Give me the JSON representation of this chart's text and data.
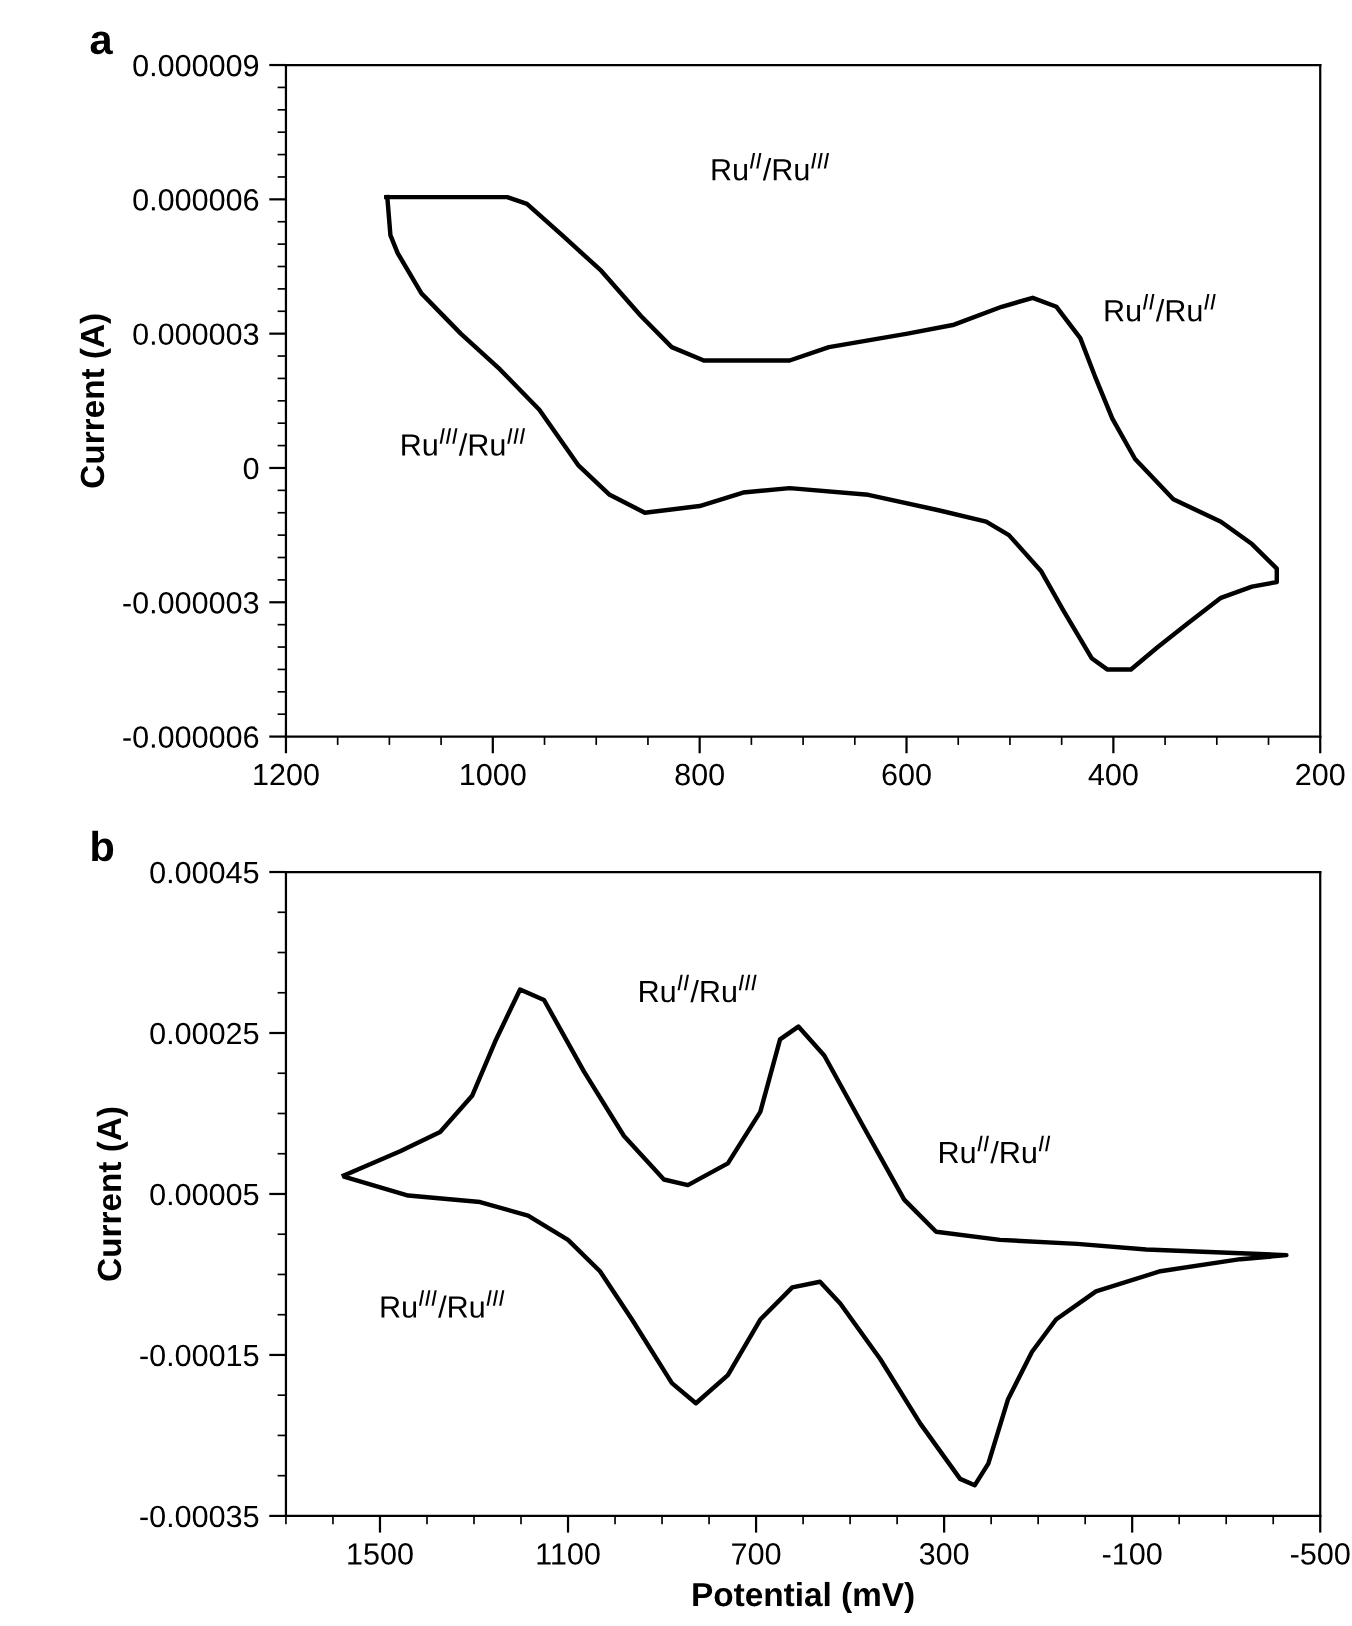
{
  "chart_data": [
    {
      "type": "line",
      "title": "a",
      "ylabel": "Current (A)",
      "xlim": [
        1200,
        200
      ],
      "ylim": [
        -6e-06,
        9e-06
      ],
      "xticks": [
        1200,
        1000,
        800,
        600,
        400,
        200
      ],
      "yticks": [
        {
          "value": 9e-06,
          "label": "0.000009"
        },
        {
          "value": 6e-06,
          "label": "0.000006"
        },
        {
          "value": 3e-06,
          "label": "0.000003"
        },
        0,
        {
          "value": -3e-06,
          "label": "-0.000003"
        },
        {
          "value": -6e-06,
          "label": "-0.000006"
        }
      ],
      "grid": false,
      "legend": false,
      "series": [
        {
          "color": "#000000",
          "x": [
            1103,
            986,
            967,
            933,
            895,
            857,
            827,
            796,
            713,
            675,
            599,
            554,
            508,
            478,
            455,
            432,
            417,
            401,
            379,
            342,
            296,
            266,
            242,
            242,
            266,
            296,
            327,
            357,
            383,
            406,
            421,
            448,
            470,
            501,
            523,
            568,
            637,
            713,
            758,
            800,
            853,
            887,
            917,
            955,
            993,
            1031,
            1069,
            1092,
            1099,
            1102
          ],
          "values": [
            6.05e-06,
            6.05e-06,
            5.9e-06,
            5.2e-06,
            4.4e-06,
            3.4e-06,
            2.7e-06,
            2.4e-06,
            2.4e-06,
            2.7e-06,
            3e-06,
            3.2e-06,
            3.6e-06,
            3.8e-06,
            3.6e-06,
            2.9e-06,
            2e-06,
            1.1e-06,
            2e-07,
            -7e-07,
            -1.2e-06,
            -1.7e-06,
            -2.25e-06,
            -2.55e-06,
            -2.65e-06,
            -2.9e-06,
            -3.45e-06,
            -4e-06,
            -4.5e-06,
            -4.5e-06,
            -4.25e-06,
            -3.2e-06,
            -2.3e-06,
            -1.5e-06,
            -1.2e-06,
            -9.5e-07,
            -6e-07,
            -4.5e-07,
            -5.5e-07,
            -8.5e-07,
            -1e-06,
            -6e-07,
            5e-08,
            1.3e-06,
            2.2e-06,
            3e-06,
            3.9e-06,
            4.8e-06,
            5.2e-06,
            6.05e-06
          ]
        }
      ],
      "annotations": [
        "Ru$^{II}$/Ru$^{III}$",
        "Ru$^{II}$/Ru$^{II}$",
        "Ru$^{III}$/Ru$^{III}$"
      ]
    },
    {
      "type": "line",
      "title": "b",
      "xlabel": "Potential (mV)",
      "ylabel": "Current (A)",
      "xlim": [
        1700,
        -500
      ],
      "ylim": [
        -0.00035,
        0.00045
      ],
      "xticks": [
        1500,
        1100,
        700,
        300,
        -100,
        -500
      ],
      "yticks": [
        {
          "value": 0.00045,
          "label": "0.00045"
        },
        {
          "value": 0.00025,
          "label": "0.00025"
        },
        {
          "value": 5e-05,
          "label": "0.00005"
        },
        {
          "value": -0.00015,
          "label": "-0.00015"
        },
        {
          "value": -0.00035,
          "label": "-0.00035"
        }
      ],
      "grid": false,
      "legend": false,
      "series": [
        {
          "color": "#000000",
          "x": [
            1577,
            1457,
            1372,
            1304,
            1253,
            1202,
            1151,
            1066,
            981,
            896,
            845,
            760,
            691,
            649,
            610,
            555,
            470,
            385,
            317,
            181,
            17,
            -130,
            -428,
            -330,
            -160,
            -23,
            62,
            113,
            164,
            206,
            235,
            266,
            351,
            436,
            521,
            564,
            623,
            691,
            760,
            828,
            879,
            964,
            1032,
            1100,
            1185,
            1287,
            1440,
            1574
          ],
          "values": [
            7.3e-05,
            0.000103,
            0.000127,
            0.000172,
            0.000242,
            0.000304,
            0.000291,
            0.000202,
            0.000122,
            6.8e-05,
            6.1e-05,
            8.8e-05,
            0.000152,
            0.000242,
            0.000258,
            0.000222,
            0.000132,
            4.3e-05,
            3e-06,
            -7e-06,
            -1.2e-05,
            -1.9e-05,
            -2.6e-05,
            -3.1e-05,
            -4.6e-05,
            -7.1e-05,
            -0.000106,
            -0.000146,
            -0.000205,
            -0.000285,
            -0.000312,
            -0.000304,
            -0.000235,
            -0.000155,
            -8.6e-05,
            -5.9e-05,
            -6.6e-05,
            -0.000106,
            -0.000175,
            -0.00021,
            -0.000185,
            -0.000106,
            -4.6e-05,
            -7e-06,
            2.3e-05,
            4e-05,
            4.8e-05,
            7.1e-05
          ]
        }
      ],
      "annotations": [
        "Ru$^{II}$/Ru$^{III}$",
        "Ru$^{II}$/Ru$^{II}$",
        "Ru$^{III}$/Ru$^{III}$"
      ]
    }
  ]
}
